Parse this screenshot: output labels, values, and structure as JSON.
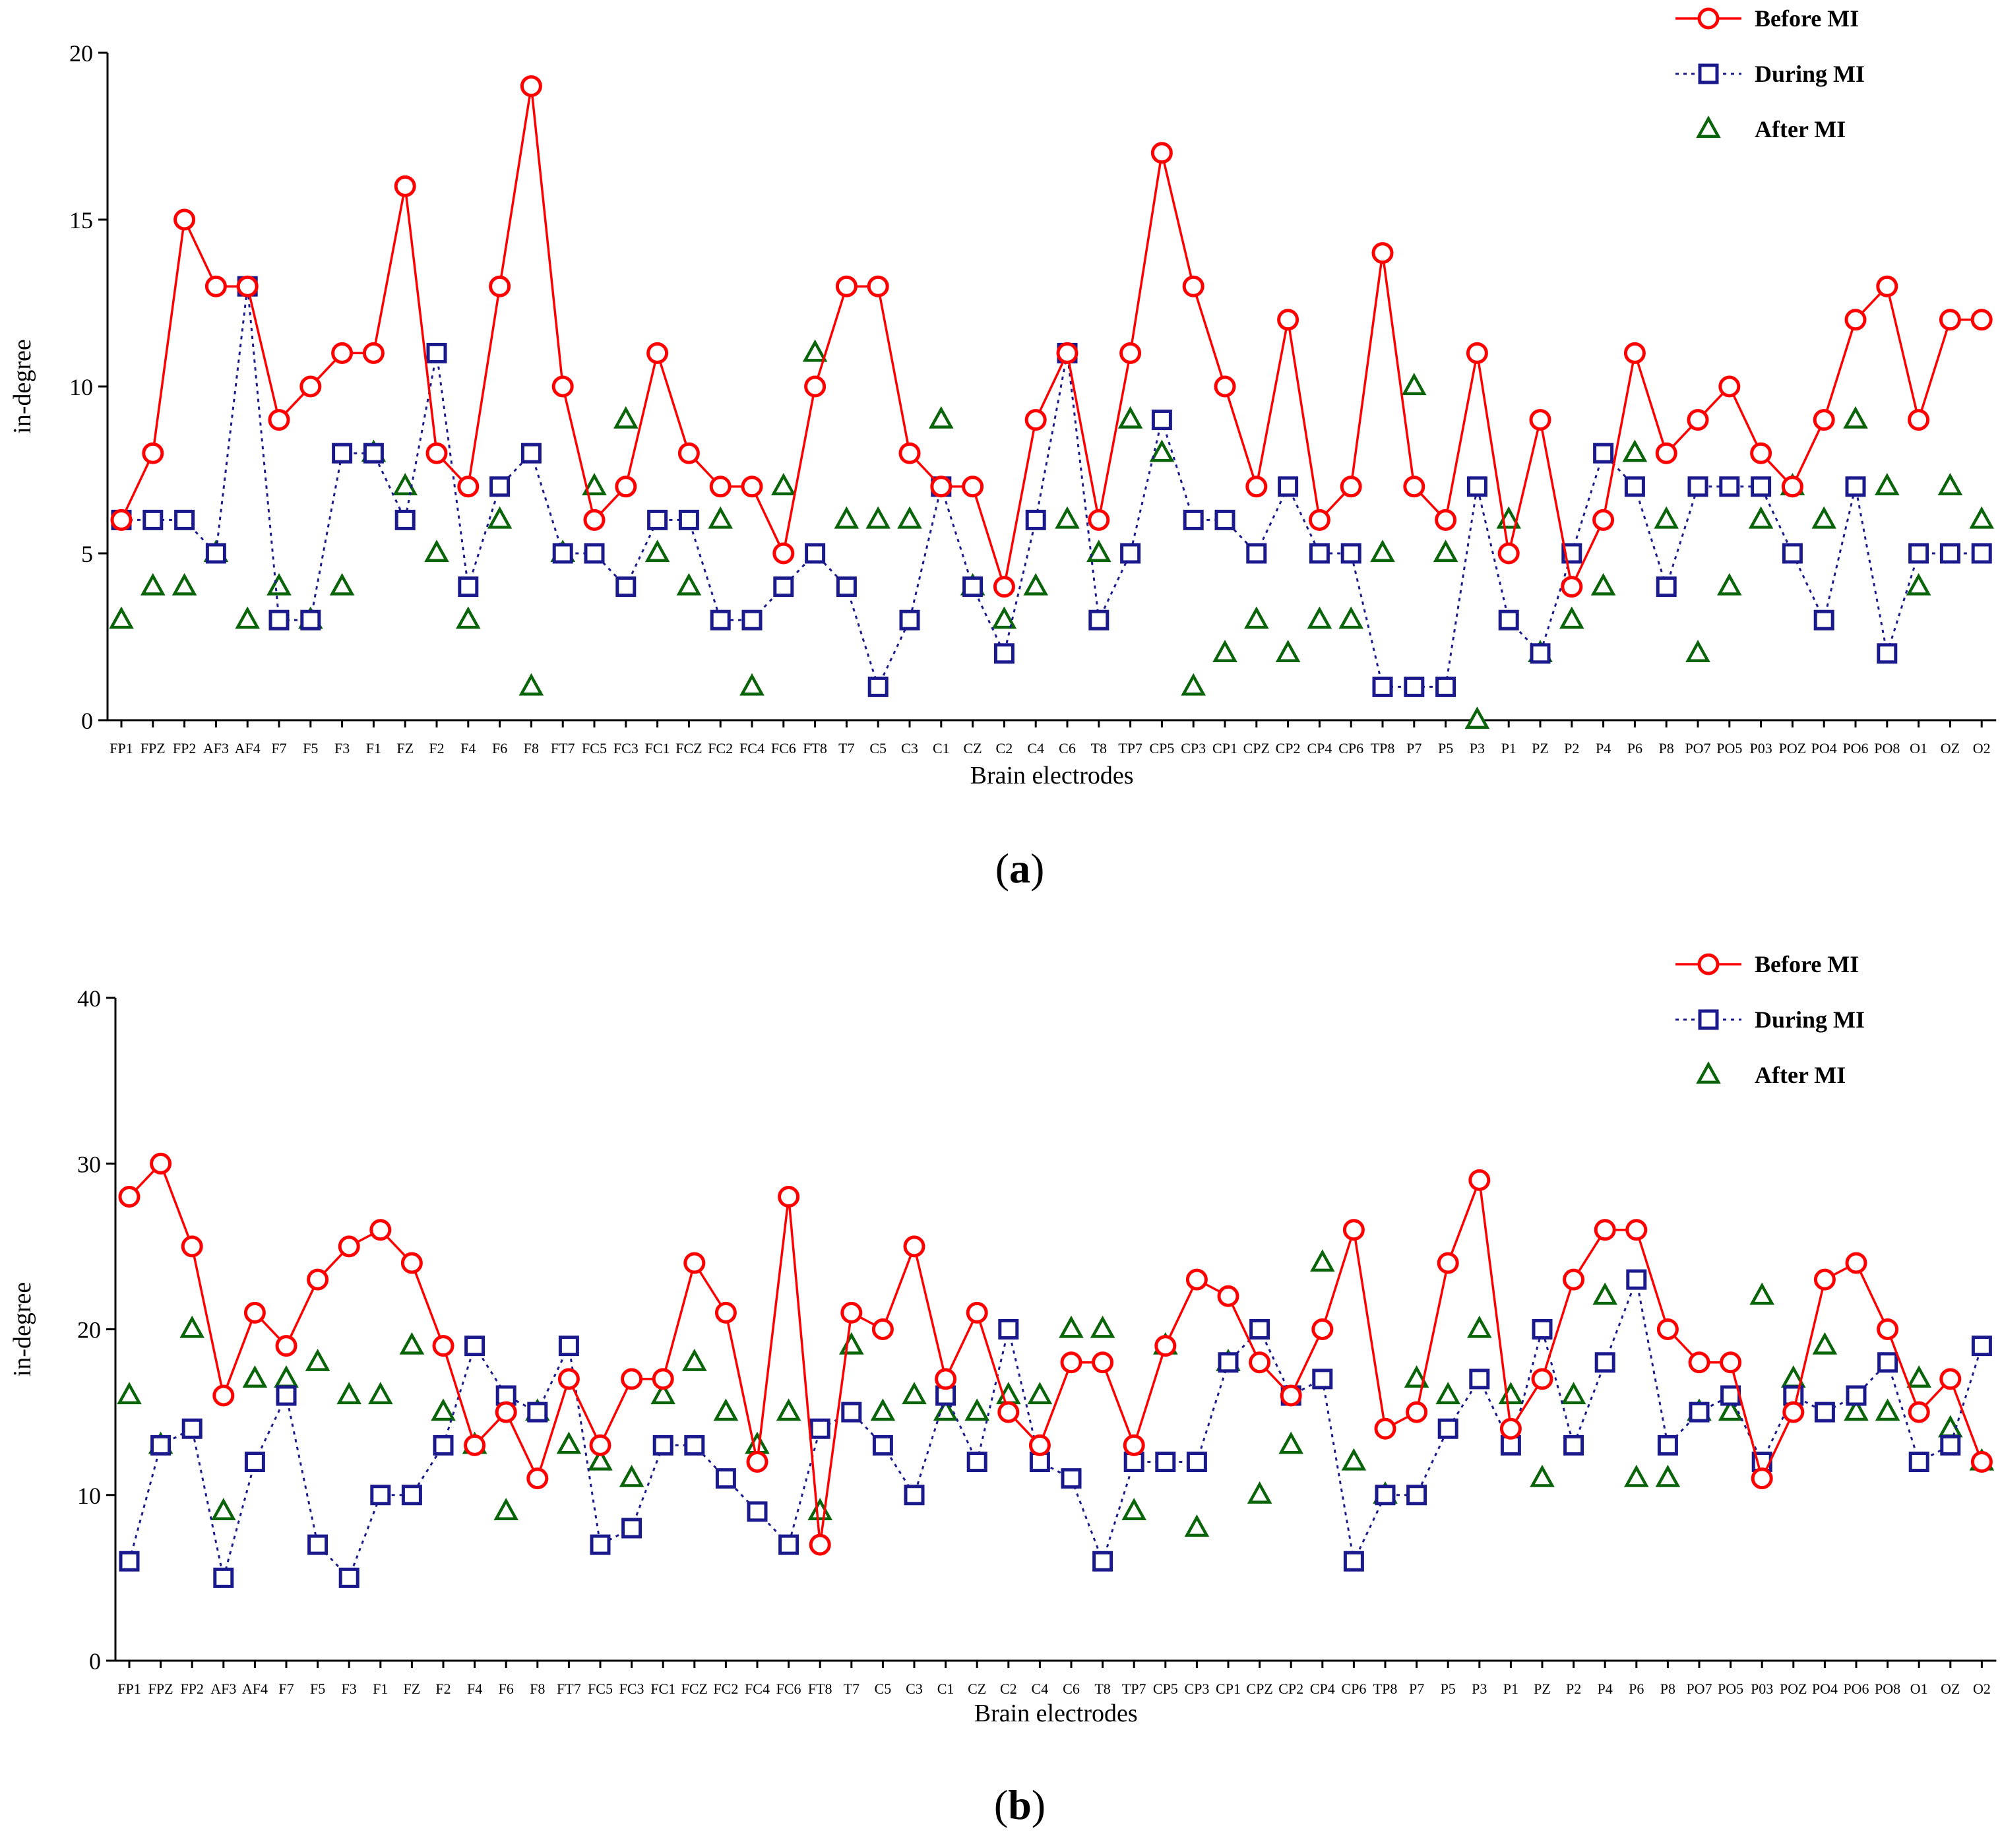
{
  "chart_data": [
    {
      "type": "line",
      "panel_label": "(a)",
      "panel_letter": "a",
      "xlabel": "Brain electrodes",
      "ylabel": "in-degree",
      "ylim": [
        0,
        20
      ],
      "yticks": [
        "0",
        "5",
        "10",
        "15",
        "20"
      ],
      "categories": [
        "FP1",
        "FPZ",
        "FP2",
        "AF3",
        "AF4",
        "F7",
        "F5",
        "F3",
        "F1",
        "FZ",
        "F2",
        "F4",
        "F6",
        "F8",
        "FT7",
        "FC5",
        "FC3",
        "FC1",
        "FCZ",
        "FC2",
        "FC4",
        "FC6",
        "FT8",
        "T7",
        "C5",
        "C3",
        "C1",
        "CZ",
        "C2",
        "C4",
        "C6",
        "T8",
        "TP7",
        "CP5",
        "CP3",
        "CP1",
        "CPZ",
        "CP2",
        "CP4",
        "CP6",
        "TP8",
        "P7",
        "P5",
        "P3",
        "P1",
        "PZ",
        "P2",
        "P4",
        "P6",
        "P8",
        "PO7",
        "PO5",
        "P03",
        "POZ",
        "PO4",
        "PO6",
        "PO8",
        "O1",
        "OZ",
        "O2"
      ],
      "legend_position": "top-right",
      "series": [
        {
          "name": "Before MI",
          "color": "#ff0000",
          "marker": "circle",
          "line": "solid",
          "values": [
            6,
            8,
            15,
            13,
            13,
            9,
            10,
            11,
            11,
            16,
            8,
            7,
            13,
            19,
            10,
            6,
            7,
            11,
            8,
            7,
            7,
            5,
            10,
            13,
            13,
            8,
            7,
            7,
            4,
            9,
            11,
            6,
            11,
            17,
            13,
            10,
            7,
            12,
            6,
            7,
            14,
            7,
            6,
            11,
            5,
            9,
            4,
            6,
            11,
            8,
            9,
            10,
            8,
            7,
            9,
            12,
            13,
            9,
            12,
            12
          ]
        },
        {
          "name": "During MI",
          "color": "#1a1a8c",
          "marker": "square",
          "line": "dotted",
          "values": [
            6,
            6,
            6,
            5,
            13,
            3,
            3,
            8,
            8,
            6,
            11,
            4,
            7,
            8,
            5,
            5,
            4,
            6,
            6,
            3,
            3,
            4,
            5,
            4,
            1,
            3,
            7,
            4,
            2,
            6,
            11,
            3,
            5,
            9,
            6,
            6,
            5,
            7,
            5,
            5,
            1,
            1,
            1,
            7,
            3,
            2,
            5,
            8,
            7,
            4,
            7,
            7,
            7,
            5,
            3,
            7,
            2,
            5,
            5,
            5
          ]
        },
        {
          "name": "After MI",
          "color": "#0a640a",
          "marker": "triangle",
          "line": "none",
          "values": [
            3,
            4,
            4,
            5,
            3,
            4,
            3,
            4,
            8,
            7,
            5,
            3,
            6,
            1,
            5,
            7,
            9,
            5,
            4,
            6,
            1,
            7,
            11,
            6,
            6,
            6,
            9,
            4,
            3,
            4,
            6,
            5,
            9,
            8,
            1,
            2,
            3,
            2,
            3,
            3,
            5,
            10,
            5,
            0,
            6,
            2,
            3,
            4,
            8,
            6,
            2,
            4,
            6,
            7,
            6,
            9,
            7,
            4,
            7,
            6
          ]
        }
      ]
    },
    {
      "type": "line",
      "panel_label": "(b)",
      "panel_letter": "b",
      "xlabel": "Brain electrodes",
      "ylabel": "in-degree",
      "ylim": [
        0,
        40
      ],
      "yticks": [
        "0",
        "10",
        "20",
        "30",
        "40"
      ],
      "categories": [
        "FP1",
        "FPZ",
        "FP2",
        "AF3",
        "AF4",
        "F7",
        "F5",
        "F3",
        "F1",
        "FZ",
        "F2",
        "F4",
        "F6",
        "F8",
        "FT7",
        "FC5",
        "FC3",
        "FC1",
        "FCZ",
        "FC2",
        "FC4",
        "FC6",
        "FT8",
        "T7",
        "C5",
        "C3",
        "C1",
        "CZ",
        "C2",
        "C4",
        "C6",
        "T8",
        "TP7",
        "CP5",
        "CP3",
        "CP1",
        "CPZ",
        "CP2",
        "CP4",
        "CP6",
        "TP8",
        "P7",
        "P5",
        "P3",
        "P1",
        "PZ",
        "P2",
        "P4",
        "P6",
        "P8",
        "PO7",
        "PO5",
        "P03",
        "POZ",
        "PO4",
        "PO6",
        "PO8",
        "O1",
        "OZ",
        "O2"
      ],
      "legend_position": "top-right",
      "series": [
        {
          "name": "Before MI",
          "color": "#ff0000",
          "marker": "circle",
          "line": "solid",
          "values": [
            28,
            30,
            25,
            16,
            21,
            19,
            23,
            25,
            26,
            24,
            19,
            13,
            15,
            11,
            17,
            13,
            17,
            17,
            24,
            21,
            12,
            28,
            7,
            21,
            20,
            25,
            17,
            21,
            15,
            13,
            18,
            18,
            13,
            19,
            23,
            22,
            18,
            16,
            20,
            26,
            14,
            15,
            24,
            29,
            14,
            17,
            23,
            26,
            26,
            20,
            18,
            18,
            11,
            15,
            23,
            24,
            20,
            15,
            17,
            12
          ]
        },
        {
          "name": "During MI",
          "color": "#1a1a8c",
          "marker": "square",
          "line": "dotted",
          "values": [
            6,
            13,
            14,
            5,
            12,
            16,
            7,
            5,
            10,
            10,
            13,
            19,
            16,
            15,
            19,
            7,
            8,
            13,
            13,
            11,
            9,
            7,
            14,
            15,
            13,
            10,
            16,
            12,
            20,
            12,
            11,
            6,
            12,
            12,
            12,
            18,
            20,
            16,
            17,
            6,
            10,
            10,
            14,
            17,
            13,
            20,
            13,
            18,
            23,
            13,
            15,
            16,
            12,
            16,
            15,
            16,
            18,
            12,
            13,
            19
          ]
        },
        {
          "name": "After MI",
          "color": "#0a640a",
          "marker": "triangle",
          "line": "none",
          "values": [
            16,
            13,
            20,
            9,
            17,
            17,
            18,
            16,
            16,
            19,
            15,
            13,
            9,
            15,
            13,
            12,
            11,
            16,
            18,
            15,
            13,
            15,
            9,
            19,
            15,
            16,
            15,
            15,
            16,
            16,
            20,
            20,
            9,
            19,
            8,
            18,
            10,
            13,
            24,
            12,
            10,
            17,
            16,
            20,
            16,
            11,
            16,
            22,
            11,
            11,
            15,
            15,
            22,
            17,
            19,
            15,
            15,
            17,
            14,
            12
          ]
        }
      ]
    }
  ]
}
